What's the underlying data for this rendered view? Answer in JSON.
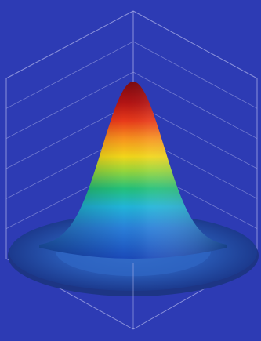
{
  "chart_data": {
    "type": "surface",
    "surface_function": "gaussian",
    "x_range": [
      -1,
      1
    ],
    "y_range": [
      -1,
      1
    ],
    "z_range": [
      0,
      1
    ],
    "peak": 1.0,
    "sigma": 0.22,
    "grid": true,
    "gridline_count": 5,
    "colormap": [
      "#1a47b8",
      "#2a7fd8",
      "#21b4d8",
      "#23c07a",
      "#97d53a",
      "#f1d61a",
      "#f7931e",
      "#e83a1a",
      "#b31414",
      "#7a0a10"
    ],
    "colors": {
      "background": "#2d3bb4",
      "box_lines": "#a9afe8",
      "base_plane": "#2a4da8",
      "base_plane_edge": "#1d3585"
    }
  }
}
